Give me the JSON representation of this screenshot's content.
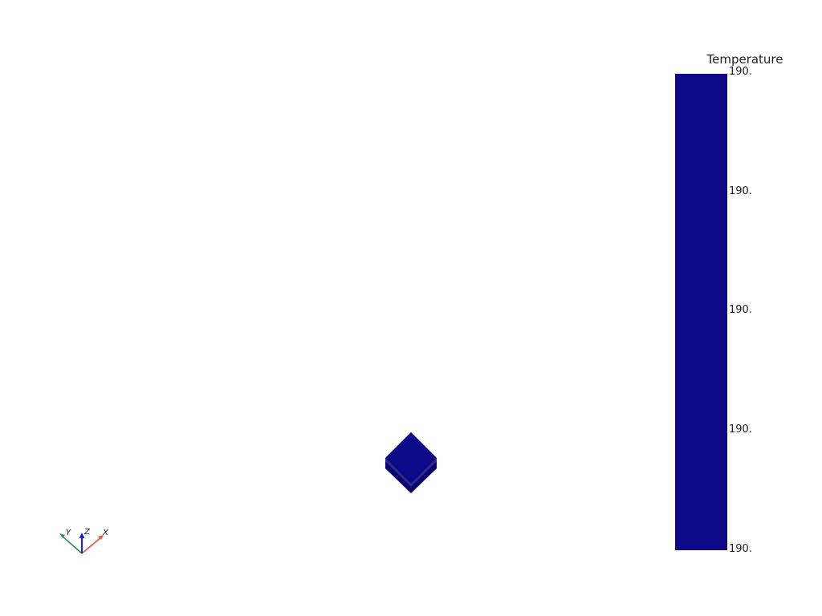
{
  "scene": {
    "background_color": "#ffffff",
    "mesh_color": "#0d0887",
    "mesh_shade_side": "#0a0670",
    "mesh_shade_front": "#0b0679",
    "mesh_edge_color": "#07044a"
  },
  "scalar_bar": {
    "title": "Temperature",
    "bar_color": "#0d0887",
    "ticks": [
      "190.",
      "190.",
      "190.",
      "190.",
      "190."
    ]
  },
  "orientation_axes": {
    "x_label": "X",
    "y_label": "Y",
    "z_label": "Z",
    "x_color": "#e05a3a",
    "y_color": "#2e8b57",
    "z_color": "#1f22d0"
  }
}
